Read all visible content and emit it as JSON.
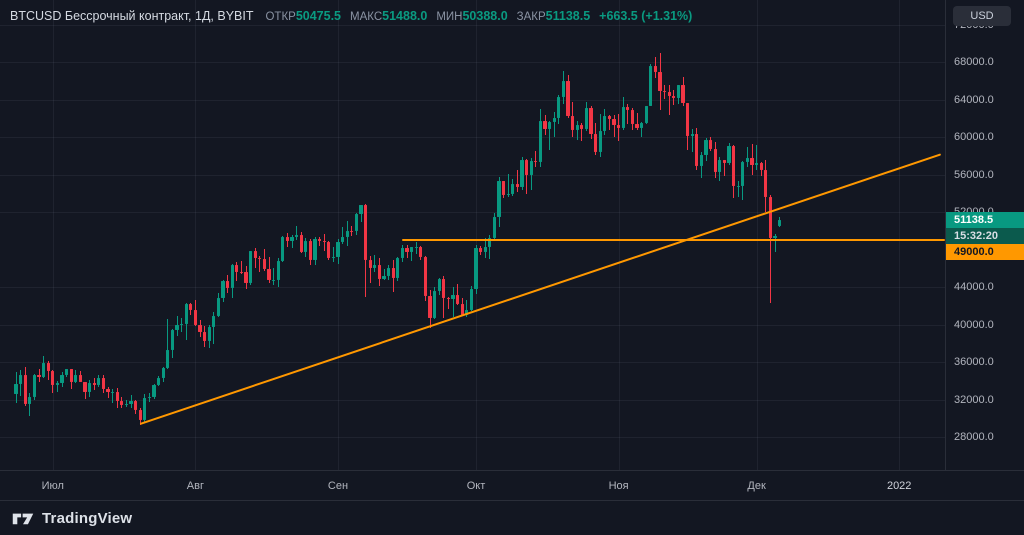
{
  "legend": {
    "title": "BTCUSD Бессрочный контракт, 1Д, BYBIT",
    "items": [
      {
        "label": "ОТКР",
        "value": "50475.5"
      },
      {
        "label": "МАКС",
        "value": "51488.0"
      },
      {
        "label": "МИН",
        "value": "50388.0"
      },
      {
        "label": "ЗАКР",
        "value": "51138.5"
      }
    ],
    "change": "+663.5 (+1.31%)"
  },
  "price_axis": {
    "currency_label": "USD"
  },
  "footer": {
    "brand": "TradingView"
  },
  "colors": {
    "background": "#131722",
    "up": "#089981",
    "down": "#f23645",
    "orange": "#ff9800",
    "countdown_bg": "#0b5a4d",
    "axis_text": "#b2b5be"
  },
  "chart_data": {
    "type": "candlestick",
    "symbol": "BTCUSD",
    "exchange": "BYBIT",
    "interval": "1Д",
    "unit": "USD",
    "up_color": "#089981",
    "down_color": "#f23645",
    "last_price": 51138.5,
    "countdown": "15:32:20",
    "ohlc": {
      "open": 50475.5,
      "high": 51488.0,
      "low": 50388.0,
      "close": 51138.5,
      "change_abs": 663.5,
      "change_pct": 1.31
    },
    "price_ticks": [
      {
        "label": "72000.0",
        "price": 72000
      },
      {
        "label": "68000.0",
        "price": 68000
      },
      {
        "label": "64000.0",
        "price": 64000
      },
      {
        "label": "60000.0",
        "price": 60000
      },
      {
        "label": "56000.0",
        "price": 56000
      },
      {
        "label": "52000.0",
        "price": 52000
      },
      {
        "label": "44000.0",
        "price": 44000
      },
      {
        "label": "40000.0",
        "price": 40000
      },
      {
        "label": "36000.0",
        "price": 36000
      },
      {
        "label": "32000.0",
        "price": 32000
      },
      {
        "label": "28000.0",
        "price": 28000
      }
    ],
    "time_ticks": [
      {
        "label": "Июл",
        "index": 8
      },
      {
        "label": "Авг",
        "index": 39
      },
      {
        "label": "Сен",
        "index": 70
      },
      {
        "label": "Окт",
        "index": 100
      },
      {
        "label": "Ноя",
        "index": 131
      },
      {
        "label": "Дек",
        "index": 161
      },
      {
        "label": "2022",
        "index": 192
      }
    ],
    "drawings": [
      {
        "type": "trendline",
        "from_index": 27,
        "from_price": 29350,
        "to_index": 201,
        "to_price": 58100,
        "color": "#ff9800"
      },
      {
        "type": "horizontal_ray",
        "start_index": 84,
        "price": 49000,
        "label": "49000.0",
        "color": "#ff9800"
      }
    ],
    "candles": [
      [
        32550,
        34900,
        31650,
        33650
      ],
      [
        33650,
        35200,
        32350,
        34650
      ],
      [
        34650,
        35450,
        31350,
        31550
      ],
      [
        31550,
        32700,
        30200,
        32250
      ],
      [
        32250,
        34750,
        31950,
        34650
      ],
      [
        34650,
        35300,
        33900,
        34450
      ],
      [
        34450,
        36600,
        34250,
        35900
      ],
      [
        35900,
        36100,
        34050,
        35050
      ],
      [
        35050,
        35100,
        32700,
        33550
      ],
      [
        33550,
        33950,
        32800,
        33800
      ],
      [
        33800,
        34950,
        33300,
        34650
      ],
      [
        34650,
        35300,
        34350,
        35300
      ],
      [
        35300,
        35300,
        33150,
        33850
      ],
      [
        33850,
        35100,
        33800,
        34600
      ],
      [
        34600,
        35050,
        33900,
        33900
      ],
      [
        33900,
        33900,
        32100,
        32850
      ],
      [
        32850,
        34100,
        32300,
        33800
      ],
      [
        33800,
        34250,
        33050,
        33500
      ],
      [
        33500,
        34600,
        33350,
        34250
      ],
      [
        34250,
        34600,
        32650,
        33100
      ],
      [
        33100,
        33350,
        32200,
        32750
      ],
      [
        32750,
        33150,
        31600,
        32800
      ],
      [
        32800,
        33200,
        31050,
        31850
      ],
      [
        31850,
        32250,
        31050,
        31400
      ],
      [
        31400,
        31950,
        31150,
        31550
      ],
      [
        31550,
        32450,
        31100,
        31800
      ],
      [
        31800,
        31900,
        30450,
        30850
      ],
      [
        30850,
        31050,
        29300,
        29800
      ],
      [
        29800,
        32600,
        29500,
        32150
      ],
      [
        32150,
        32650,
        31750,
        32300
      ],
      [
        32300,
        33650,
        32050,
        33600
      ],
      [
        33600,
        34500,
        33400,
        34250
      ],
      [
        34250,
        35450,
        33900,
        35400
      ],
      [
        35400,
        40550,
        35250,
        37250
      ],
      [
        37250,
        39550,
        36400,
        39450
      ],
      [
        39450,
        40900,
        38800,
        40000
      ],
      [
        40000,
        40650,
        39250,
        40050
      ],
      [
        40050,
        42300,
        38400,
        42200
      ],
      [
        42200,
        42250,
        41050,
        41550
      ],
      [
        41550,
        42600,
        39850,
        39900
      ],
      [
        39900,
        40450,
        38700,
        39150
      ],
      [
        39150,
        39800,
        37650,
        38200
      ],
      [
        38200,
        39950,
        37500,
        39750
      ],
      [
        39750,
        41350,
        37950,
        40900
      ],
      [
        40900,
        43350,
        40850,
        42850
      ],
      [
        42850,
        44700,
        42450,
        44650
      ],
      [
        44650,
        45300,
        43400,
        43850
      ],
      [
        43850,
        46450,
        42800,
        46300
      ],
      [
        46300,
        46700,
        44600,
        45600
      ],
      [
        45600,
        46750,
        45350,
        45550
      ],
      [
        45550,
        46200,
        43750,
        44400
      ],
      [
        44400,
        47850,
        44250,
        47800
      ],
      [
        47800,
        48150,
        46050,
        47100
      ],
      [
        47100,
        47350,
        45550,
        47000
      ],
      [
        47000,
        48050,
        45700,
        45900
      ],
      [
        45900,
        47150,
        44400,
        44700
      ],
      [
        44700,
        46000,
        44250,
        44700
      ],
      [
        44700,
        47050,
        43950,
        46750
      ],
      [
        46750,
        49400,
        46650,
        49350
      ],
      [
        49350,
        49750,
        48250,
        48900
      ],
      [
        48900,
        49500,
        48150,
        49300
      ],
      [
        49300,
        50500,
        49050,
        49500
      ],
      [
        49500,
        49900,
        47600,
        47700
      ],
      [
        47700,
        49250,
        47150,
        48950
      ],
      [
        48950,
        49150,
        46350,
        46850
      ],
      [
        46850,
        49300,
        46350,
        49100
      ],
      [
        49100,
        49300,
        48350,
        48900
      ],
      [
        48900,
        49650,
        47800,
        48800
      ],
      [
        48800,
        48900,
        46850,
        47050
      ],
      [
        47050,
        48250,
        46700,
        47150
      ],
      [
        47150,
        49150,
        46500,
        48850
      ],
      [
        48850,
        50400,
        48600,
        49300
      ],
      [
        49300,
        51000,
        48350,
        50000
      ],
      [
        50000,
        50550,
        49450,
        49950
      ],
      [
        49950,
        51900,
        49500,
        51800
      ],
      [
        51800,
        52750,
        50950,
        52700
      ],
      [
        52700,
        52900,
        42900,
        46850
      ],
      [
        46850,
        47350,
        44400,
        46050
      ],
      [
        46050,
        47400,
        45550,
        46400
      ],
      [
        46400,
        47050,
        44150,
        44850
      ],
      [
        44850,
        45950,
        44750,
        45150
      ],
      [
        45150,
        46400,
        44700,
        46050
      ],
      [
        46050,
        46900,
        43450,
        44950
      ],
      [
        44950,
        47250,
        44650,
        47100
      ],
      [
        47100,
        48450,
        46700,
        48150
      ],
      [
        48150,
        48500,
        47050,
        47750
      ],
      [
        47750,
        48300,
        46750,
        48300
      ],
      [
        48300,
        48850,
        47550,
        48300
      ],
      [
        48300,
        48350,
        46880,
        47250
      ],
      [
        47250,
        47350,
        42500,
        43000
      ],
      [
        43000,
        43650,
        39600,
        40700
      ],
      [
        40700,
        44000,
        40550,
        43550
      ],
      [
        43550,
        44950,
        43100,
        44900
      ],
      [
        44900,
        45200,
        40700,
        42850
      ],
      [
        42850,
        42950,
        41700,
        42700
      ],
      [
        42700,
        43950,
        40750,
        43200
      ],
      [
        43200,
        44350,
        42100,
        42150
      ],
      [
        42150,
        42800,
        40900,
        41050
      ],
      [
        41050,
        42600,
        40800,
        41550
      ],
      [
        41550,
        44100,
        41450,
        43800
      ],
      [
        43800,
        48500,
        43300,
        48200
      ],
      [
        48200,
        48350,
        47450,
        47700
      ],
      [
        47700,
        49250,
        47100,
        48250
      ],
      [
        48250,
        49550,
        46950,
        49250
      ],
      [
        49250,
        51900,
        49050,
        51500
      ],
      [
        51500,
        55750,
        50450,
        55350
      ],
      [
        55350,
        55350,
        53450,
        53800
      ],
      [
        53800,
        56100,
        53650,
        53950
      ],
      [
        53950,
        55500,
        53700,
        54950
      ],
      [
        54950,
        56500,
        54150,
        54700
      ],
      [
        54700,
        57850,
        54400,
        57500
      ],
      [
        57500,
        57700,
        53900,
        56000
      ],
      [
        56000,
        57800,
        54300,
        57400
      ],
      [
        57400,
        58550,
        56800,
        57350
      ],
      [
        57350,
        62950,
        56850,
        61700
      ],
      [
        61700,
        62400,
        60200,
        60900
      ],
      [
        60900,
        61750,
        58600,
        61550
      ],
      [
        61550,
        62700,
        59950,
        62050
      ],
      [
        62050,
        64500,
        61400,
        64300
      ],
      [
        64300,
        67000,
        63500,
        66000
      ],
      [
        66000,
        66650,
        62050,
        62200
      ],
      [
        62200,
        63750,
        60000,
        60700
      ],
      [
        60700,
        61750,
        59650,
        61300
      ],
      [
        61300,
        61500,
        59550,
        60850
      ],
      [
        60850,
        63700,
        60650,
        63100
      ],
      [
        63100,
        63300,
        59800,
        60300
      ],
      [
        60300,
        61450,
        58100,
        58450
      ],
      [
        58450,
        62500,
        57850,
        60600
      ],
      [
        60600,
        62980,
        60200,
        62250
      ],
      [
        62250,
        62350,
        60700,
        61900
      ],
      [
        61900,
        62400,
        60000,
        61300
      ],
      [
        61300,
        62450,
        59550,
        61000
      ],
      [
        61000,
        64250,
        60700,
        63200
      ],
      [
        63200,
        63550,
        61400,
        62900
      ],
      [
        62900,
        63100,
        60750,
        61400
      ],
      [
        61400,
        62600,
        60750,
        61000
      ],
      [
        61000,
        61600,
        60050,
        61500
      ],
      [
        61500,
        63300,
        61350,
        63300
      ],
      [
        63300,
        67800,
        63300,
        67550
      ],
      [
        67550,
        68550,
        66300,
        66950
      ],
      [
        66950,
        69000,
        62850,
        64950
      ],
      [
        64950,
        65600,
        64100,
        64800
      ],
      [
        64800,
        65500,
        62300,
        64400
      ],
      [
        64400,
        64975,
        63400,
        64150
      ],
      [
        64150,
        65550,
        63550,
        65500
      ],
      [
        65500,
        66350,
        63350,
        63600
      ],
      [
        63600,
        63650,
        58600,
        60100
      ],
      [
        60100,
        60850,
        58400,
        60350
      ],
      [
        60350,
        60950,
        56500,
        56900
      ],
      [
        56900,
        58350,
        55600,
        58100
      ],
      [
        58100,
        59850,
        57450,
        59700
      ],
      [
        59700,
        60050,
        58500,
        58700
      ],
      [
        58700,
        59450,
        55600,
        56300
      ],
      [
        56300,
        57850,
        55300,
        57550
      ],
      [
        57550,
        57550,
        55850,
        57200
      ],
      [
        57200,
        59400,
        57000,
        59000
      ],
      [
        59000,
        59150,
        53500,
        54750
      ],
      [
        54750,
        55280,
        53600,
        54800
      ],
      [
        54800,
        57450,
        53300,
        57300
      ],
      [
        57300,
        58900,
        56750,
        57800
      ],
      [
        57800,
        59250,
        55900,
        57000
      ],
      [
        57000,
        59100,
        56500,
        57200
      ],
      [
        57200,
        57350,
        55850,
        56500
      ],
      [
        56500,
        57600,
        52000,
        53600
      ],
      [
        53600,
        53850,
        42300,
        49250
      ],
      [
        49250,
        49700,
        47700,
        49400
      ],
      [
        50475.5,
        51488,
        50388,
        51138.5
      ]
    ]
  }
}
